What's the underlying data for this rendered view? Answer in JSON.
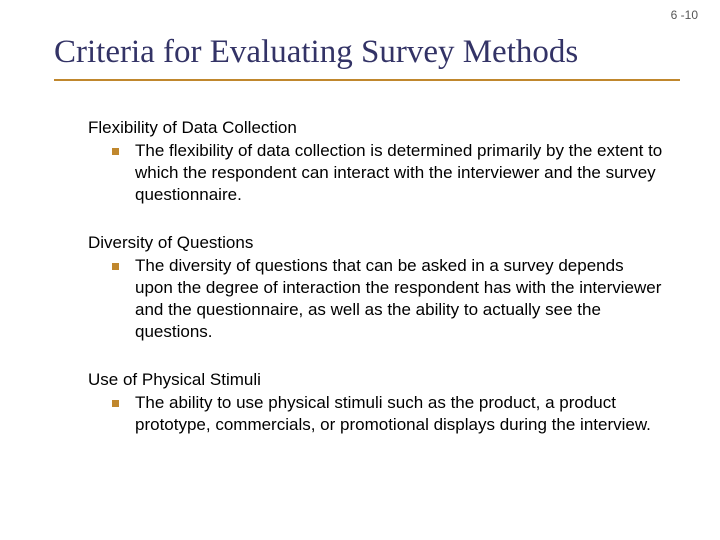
{
  "page_number": "6 -10",
  "title": "Criteria for Evaluating Survey Methods",
  "colors": {
    "title_color": "#333366",
    "accent": "#c0872d",
    "body_text": "#000000",
    "background": "#ffffff"
  },
  "typography": {
    "title_font": "Georgia, 'Times New Roman', serif",
    "body_font": "Verdana, Arial, sans-serif",
    "title_fontsize": 33,
    "heading_fontsize": 17,
    "body_fontsize": 17,
    "pagenum_fontsize": 12
  },
  "sections": [
    {
      "heading": "Flexibility of Data Collection",
      "bullets": [
        "The flexibility of data collection is determined primarily by the extent to which the respondent can interact with the interviewer and the survey questionnaire."
      ]
    },
    {
      "heading": "Diversity of Questions",
      "bullets": [
        "The diversity of questions that can be asked in a survey depends upon the degree of interaction the respondent has with the interviewer and the questionnaire, as well as the ability to actually see the questions."
      ]
    },
    {
      "heading": "Use of Physical Stimuli",
      "bullets": [
        "The ability to use physical stimuli such as the product, a product prototype, commercials, or promotional displays during the interview."
      ]
    }
  ]
}
